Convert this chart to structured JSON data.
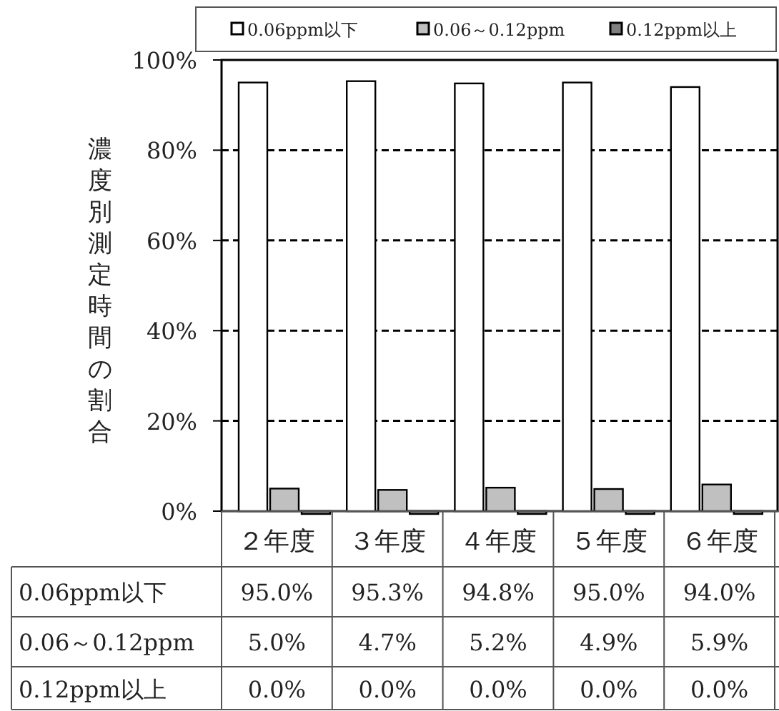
{
  "chart_data": {
    "type": "bar",
    "ylabel": "濃度別測定時間の割合",
    "categories": [
      "２年度",
      "３年度",
      "４年度",
      "５年度",
      "６年度"
    ],
    "series": [
      {
        "name": "0.06ppm以下",
        "color": "#ffffff",
        "values": [
          95.0,
          95.3,
          94.8,
          95.0,
          94.0
        ],
        "value_labels": [
          "95.0%",
          "95.3%",
          "94.8%",
          "95.0%",
          "94.0%"
        ]
      },
      {
        "name": "0.06～0.12ppm",
        "color": "#c0c0c0",
        "values": [
          5.0,
          4.7,
          5.2,
          4.9,
          5.9
        ],
        "value_labels": [
          "5.0%",
          "4.7%",
          "5.2%",
          "4.9%",
          "5.9%"
        ]
      },
      {
        "name": "0.12ppm以上",
        "color": "#808080",
        "values": [
          0.0,
          0.0,
          0.0,
          0.0,
          0.0
        ],
        "value_labels": [
          "0.0%",
          "0.0%",
          "0.0%",
          "0.0%",
          "0.0%"
        ]
      }
    ],
    "ylim": [
      0,
      100
    ],
    "yticks": [
      {
        "value": 0,
        "label": "0%"
      },
      {
        "value": 20,
        "label": "20%"
      },
      {
        "value": 40,
        "label": "40%"
      },
      {
        "value": 60,
        "label": "60%"
      },
      {
        "value": 80,
        "label": "80%"
      },
      {
        "value": 100,
        "label": "100%"
      }
    ],
    "grid": "y",
    "legend": "top"
  }
}
